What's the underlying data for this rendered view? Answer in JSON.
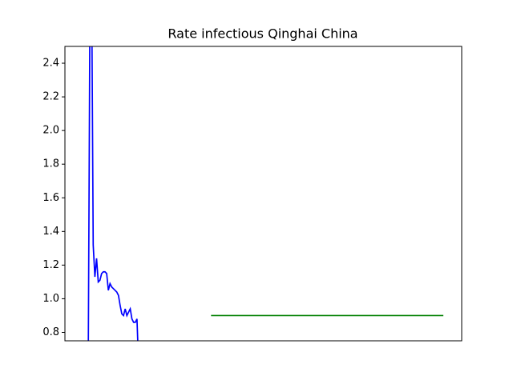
{
  "chart_data": {
    "type": "line",
    "title": "Rate infectious Qinghai China",
    "xlim": [
      -13.8,
      221.9
    ],
    "ylim": [
      0.75,
      2.5
    ],
    "yticks": [
      {
        "value": 0.8,
        "label": "0.8"
      },
      {
        "value": 1.0,
        "label": "1.0"
      },
      {
        "value": 1.2,
        "label": "1.2"
      },
      {
        "value": 1.4,
        "label": "1.4"
      },
      {
        "value": 1.6,
        "label": "1.6"
      },
      {
        "value": 1.8,
        "label": "1.8"
      },
      {
        "value": 2.0,
        "label": "2.0"
      },
      {
        "value": 2.2,
        "label": "2.2"
      },
      {
        "value": 2.4,
        "label": "2.4"
      }
    ],
    "series": [
      {
        "color": "#0000ff",
        "x": [
          0,
          1,
          2,
          3,
          4,
          5,
          6,
          7,
          8,
          9,
          10,
          11,
          12,
          13,
          14,
          15,
          16,
          17,
          18,
          19,
          20,
          21,
          22,
          23,
          24,
          25,
          26,
          27,
          28,
          29,
          30
        ],
        "values": [
          0.5,
          2.6,
          3.0,
          1.32,
          1.13,
          1.24,
          1.1,
          1.11,
          1.15,
          1.16,
          1.16,
          1.15,
          1.05,
          1.09,
          1.07,
          1.06,
          1.05,
          1.04,
          1.02,
          0.96,
          0.91,
          0.9,
          0.94,
          0.9,
          0.92,
          0.94,
          0.88,
          0.86,
          0.86,
          0.88,
          0.6
        ]
      },
      {
        "color": "#008000",
        "x": [
          73,
          211
        ],
        "values": [
          0.9,
          0.9
        ]
      }
    ]
  }
}
